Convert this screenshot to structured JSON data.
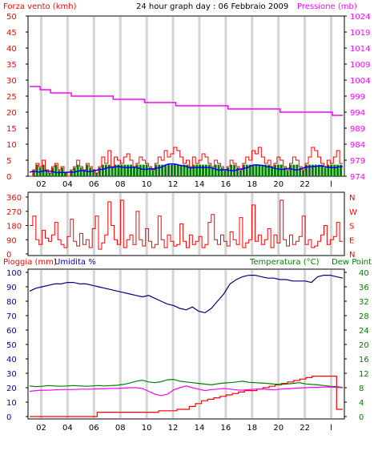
{
  "header": {
    "left_label": "Forza vento (kmh)",
    "center_title": "24 hour graph day : 06 Febbraio 2009",
    "right_label": "Pressione (mb)"
  },
  "middle": {
    "compass_labels": [
      "N",
      "W",
      "S",
      "E",
      "N"
    ]
  },
  "bottom": {
    "left_label1": "Pioggia (mm)",
    "left_label2": "Umidita %",
    "right_label1": "Temperatura (°C)",
    "right_label2": "Dew Point"
  },
  "colors": {
    "wind": "#ff0000",
    "wind_avg": "#0000ff",
    "wind_gust": "#008000",
    "pressure": "#ff00ff",
    "direction": "#ff0000",
    "humidity": "#000080",
    "rain": "#ff0000",
    "temperature": "#008000",
    "dewpoint": "#ff00ff",
    "grid": "#d4d4d4",
    "left_axis_text": "#ff0000",
    "pressure_axis_text": "#ff00ff",
    "humidity_axis_text": "#0000c0",
    "temp_axis_text": "#008000"
  },
  "chart_data": [
    {
      "type": "line",
      "title": "24 hour graph day : 06 Febbraio 2009",
      "x_tick_labels": [
        "02",
        "04",
        "06",
        "08",
        "10",
        "12",
        "14",
        "16",
        "18",
        "20",
        "22",
        "l"
      ],
      "left_axis": {
        "label": "Forza vento (kmh)",
        "ticks": [
          0,
          5,
          10,
          15,
          20,
          25,
          30,
          35,
          40,
          45,
          50
        ],
        "range": [
          0,
          50
        ]
      },
      "right_axis": {
        "label": "Pressione (mb)",
        "ticks": [
          974,
          979,
          984,
          989,
          994,
          999,
          1004,
          1009,
          1014,
          1019,
          1024
        ],
        "range": [
          974,
          1024
        ]
      },
      "series": [
        {
          "name": "Forza vento (kmh)",
          "axis": "left",
          "values": [
            0,
            2,
            4,
            3,
            5,
            2,
            1,
            3,
            4,
            2,
            3,
            1,
            0,
            2,
            3,
            5,
            3,
            2,
            4,
            3,
            2,
            1,
            3,
            6,
            4,
            8,
            3,
            6,
            5,
            4,
            6,
            7,
            5,
            3,
            4,
            6,
            5,
            4,
            3,
            2,
            4,
            6,
            5,
            8,
            6,
            7,
            9,
            8,
            6,
            4,
            5,
            3,
            6,
            4,
            5,
            7,
            6,
            4,
            3,
            5,
            4,
            3,
            2,
            3,
            5,
            4,
            3,
            2,
            4,
            6,
            5,
            8,
            7,
            9,
            6,
            4,
            5,
            3,
            4,
            6,
            5,
            3,
            2,
            4,
            6,
            5,
            3,
            2,
            4,
            6,
            9,
            8,
            6,
            4,
            3,
            5,
            4,
            6,
            8,
            4
          ]
        },
        {
          "name": "Pressione (mb)",
          "axis": "right",
          "values": [
            1002,
            1001,
            1000,
            1000,
            999,
            999,
            999,
            999,
            998,
            998,
            998,
            997,
            997,
            997,
            996,
            996,
            996,
            996,
            996,
            995,
            995,
            995,
            995,
            995,
            994,
            994,
            994,
            994,
            994,
            993
          ]
        }
      ]
    },
    {
      "type": "line",
      "title": "",
      "axis": {
        "ticks": [
          0,
          90,
          180,
          270,
          360
        ],
        "range": [
          0,
          360
        ],
        "compass": [
          "N",
          "W",
          "S",
          "E",
          "N"
        ]
      },
      "series": [
        {
          "name": "",
          "values": [
            180,
            240,
            90,
            60,
            150,
            100,
            80,
            120,
            200,
            90,
            60,
            40,
            110,
            220,
            80,
            50,
            130,
            60,
            90,
            40,
            160,
            240,
            30,
            70,
            120,
            330,
            180,
            90,
            60,
            340,
            40,
            90,
            120,
            60,
            270,
            90,
            50,
            160,
            80,
            40,
            60,
            240,
            90,
            40,
            120,
            80,
            50,
            60,
            190,
            80,
            40,
            120,
            60,
            80,
            110,
            40,
            60,
            200,
            250,
            90,
            60,
            120,
            80,
            50,
            140,
            90,
            60,
            230,
            40,
            70,
            90,
            310,
            80,
            120,
            60,
            90,
            160,
            40,
            120,
            70,
            340,
            90,
            50,
            120,
            60,
            80,
            110,
            240,
            60,
            90,
            40,
            50,
            80,
            120,
            180,
            60,
            90,
            110,
            200,
            80
          ]
        }
      ]
    },
    {
      "type": "line",
      "title": "",
      "left_axis": {
        "label": "Pioggia (mm) / Umidita %",
        "ticks": [
          0,
          10,
          20,
          30,
          40,
          50,
          60,
          70,
          80,
          90,
          100
        ],
        "range": [
          0,
          100
        ]
      },
      "right_axis": {
        "label": "Temperatura (°C) / Dew Point",
        "ticks": [
          0,
          4,
          8,
          12,
          16,
          20,
          24,
          28,
          32,
          36,
          40
        ],
        "range": [
          0,
          40
        ]
      },
      "series": [
        {
          "name": "Umidita %",
          "axis": "left",
          "values": [
            87,
            89,
            90,
            91,
            92,
            92,
            93,
            93,
            92,
            92,
            91,
            90,
            89,
            88,
            87,
            86,
            85,
            84,
            83,
            84,
            82,
            80,
            78,
            77,
            75,
            74,
            76,
            73,
            72,
            75,
            80,
            85,
            92,
            95,
            97,
            98,
            98,
            97,
            96,
            96,
            95,
            95,
            94,
            94,
            94,
            93,
            97,
            98,
            98,
            97,
            96
          ]
        },
        {
          "name": "Pioggia (mm)",
          "axis": "left",
          "values": [
            0,
            0,
            0,
            0,
            0,
            0,
            0,
            0,
            0,
            0,
            0,
            3,
            3,
            3,
            3,
            3,
            3,
            3,
            3,
            3,
            3,
            4,
            4,
            4,
            5,
            5,
            7,
            9,
            11,
            12,
            13,
            14,
            15,
            16,
            17,
            18,
            18,
            19,
            20,
            21,
            22,
            23,
            24,
            25,
            26,
            27,
            28,
            28,
            28,
            28,
            5
          ]
        },
        {
          "name": "Temperatura (°C)",
          "axis": "right",
          "values": [
            8.5,
            8.3,
            8.4,
            8.6,
            8.5,
            8.4,
            8.5,
            8.6,
            8.5,
            8.4,
            8.5,
            8.6,
            8.5,
            8.6,
            8.7,
            8.9,
            9.3,
            9.8,
            10.1,
            9.6,
            9.4,
            9.7,
            10.2,
            10.3,
            9.8,
            9.6,
            9.4,
            9.2,
            9.0,
            8.8,
            9.1,
            9.3,
            9.4,
            9.6,
            9.8,
            9.5,
            9.4,
            9.3,
            9.2,
            9.0,
            8.9,
            9.0,
            9.2,
            9.4,
            9.1,
            8.9,
            8.8,
            8.6,
            8.4,
            8.3,
            8.1
          ]
        },
        {
          "name": "Dew Point",
          "axis": "right",
          "values": [
            7.0,
            7.2,
            7.3,
            7.3,
            7.4,
            7.5,
            7.5,
            7.5,
            7.6,
            7.6,
            7.6,
            7.7,
            7.7,
            7.8,
            7.8,
            7.9,
            8.0,
            8.0,
            7.8,
            7.0,
            6.2,
            5.8,
            6.2,
            7.4,
            8.0,
            8.5,
            8.0,
            7.6,
            7.2,
            7.5,
            7.6,
            7.8,
            7.6,
            7.4,
            7.3,
            7.5,
            7.6,
            7.7,
            7.5,
            7.4,
            7.6,
            7.7,
            7.8,
            7.9,
            8.0,
            8.1,
            8.1,
            8.2,
            8.2,
            8.1,
            8.0
          ]
        }
      ]
    }
  ]
}
